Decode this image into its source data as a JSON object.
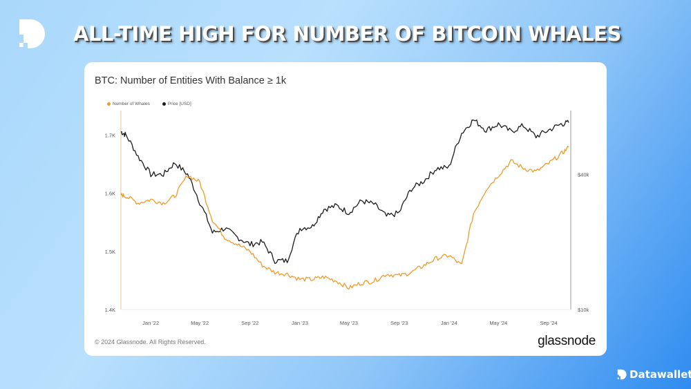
{
  "headline": "ALL-TIME HIGH FOR NUMBER OF BITCOIN WHALES",
  "brand": "Datawallet",
  "card": {
    "copyright": "© 2024 Glassnode. All Rights Reserved.",
    "source_logo": "glassnode"
  },
  "chart_data": {
    "type": "line",
    "title": "BTC: Number of Entities With Balance ≥ 1k",
    "legend_position": "top-left",
    "grid": false,
    "x_ticks": [
      "Jan '22",
      "May '22",
      "Sep '22",
      "Jan '23",
      "May '23",
      "Sep '23",
      "Jan '24",
      "May '24",
      "Sep '24"
    ],
    "x_tick_dates": [
      "2022-01-01",
      "2022-05-01",
      "2022-09-01",
      "2023-01-01",
      "2023-05-01",
      "2023-09-01",
      "2024-01-01",
      "2024-05-01",
      "2024-09-01"
    ],
    "xlim": [
      "2021-10-20",
      "2024-10-25"
    ],
    "y_left": {
      "ticks": [
        "1.7K",
        "1.6K",
        "1.5K",
        "1.4K"
      ],
      "tick_values": [
        1700,
        1600,
        1500,
        1400
      ],
      "range": [
        1400,
        1742
      ],
      "scale": "linear"
    },
    "y_right": {
      "ticks": [
        "$40k",
        "$10k"
      ],
      "tick_values": [
        40000,
        10000
      ],
      "range": [
        10000,
        77000
      ],
      "scale": "log"
    },
    "x": [
      "2021-10-20",
      "2021-11-01",
      "2021-12-01",
      "2022-01-01",
      "2022-02-01",
      "2022-03-01",
      "2022-04-01",
      "2022-05-01",
      "2022-06-01",
      "2022-07-01",
      "2022-08-01",
      "2022-09-01",
      "2022-10-01",
      "2022-11-01",
      "2022-12-01",
      "2023-01-01",
      "2023-02-01",
      "2023-03-01",
      "2023-04-01",
      "2023-05-01",
      "2023-06-01",
      "2023-07-01",
      "2023-08-01",
      "2023-09-01",
      "2023-10-01",
      "2023-11-01",
      "2023-12-01",
      "2024-01-01",
      "2024-02-01",
      "2024-03-01",
      "2024-04-01",
      "2024-05-01",
      "2024-06-01",
      "2024-07-01",
      "2024-08-01",
      "2024-09-01",
      "2024-10-01",
      "2024-10-20"
    ],
    "series": [
      {
        "name": "Number of Whales",
        "axis": "left",
        "color": "#f09a2a",
        "values": [
          1597,
          1595,
          1583,
          1589,
          1583,
          1595,
          1631,
          1619,
          1554,
          1524,
          1512,
          1500,
          1476,
          1464,
          1461,
          1452,
          1452,
          1456,
          1449,
          1437,
          1446,
          1449,
          1461,
          1458,
          1464,
          1476,
          1488,
          1493,
          1476,
          1565,
          1607,
          1631,
          1655,
          1643,
          1637,
          1651,
          1667,
          1679
        ]
      },
      {
        "name": "Price [USD]",
        "axis": "right",
        "color": "#1a1a1a",
        "values": [
          62000,
          60000,
          48000,
          40000,
          40000,
          45000,
          40000,
          30000,
          22000,
          23000,
          21000,
          19500,
          20000,
          16500,
          16500,
          23000,
          23500,
          28000,
          29000,
          27000,
          30500,
          29500,
          26000,
          27000,
          34500,
          37500,
          42500,
          43000,
          61000,
          70000,
          63000,
          67000,
          62000,
          66000,
          59000,
          63000,
          67000,
          68000
        ]
      }
    ]
  }
}
